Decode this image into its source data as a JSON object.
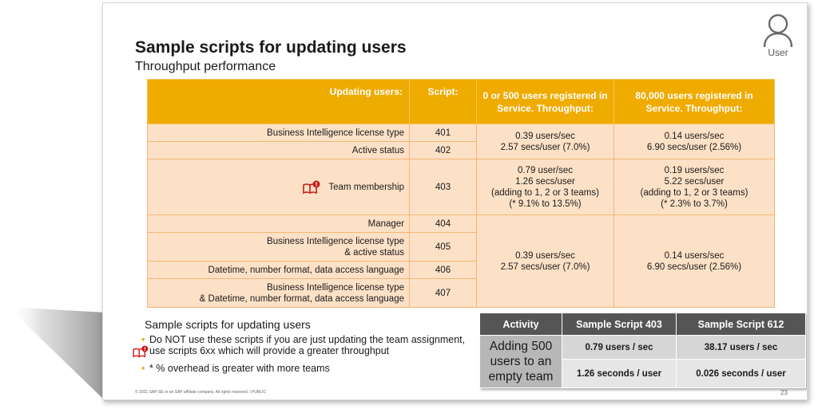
{
  "slide": {
    "title": "Sample scripts for updating users",
    "subtitle": "Throughput performance",
    "user_label": "User",
    "footer": "© 2021 SAP SE or an SAP affiliate company. All rights reserved.  ǀ  PUBLIC",
    "page_number": "23"
  },
  "main_table": {
    "headers": {
      "updating": "Updating users:",
      "script": "Script:",
      "col_a": "0 or 500 users registered in Service. Throughput:",
      "col_b": "80,000 users registered in Service. Throughput:"
    },
    "rows": [
      {
        "label": "Business Intelligence license type",
        "script": "401"
      },
      {
        "label": "Active status",
        "script": "402"
      },
      {
        "label": "Team membership",
        "script": "403"
      },
      {
        "label": "Manager",
        "script": "404"
      },
      {
        "label": "Business Intelligence license type\n& active status",
        "script": "405"
      },
      {
        "label": "Datetime, number format, data access language",
        "script": "406"
      },
      {
        "label": "Business Intelligence license type\n& Datetime, number format, data access language",
        "script": "407"
      }
    ],
    "group1": {
      "a": "0.39 users/sec\n2.57 secs/user (7.0%)",
      "b": "0.14 users/sec\n6.90 secs/user (2.56%)"
    },
    "group2": {
      "a": "0.79 user/sec\n1.26 secs/user\n(adding to 1, 2 or 3 teams)\n(* 9.1% to 13.5%)",
      "b": "0.19 users/sec\n5.22 secs/user\n(adding to 1, 2 or 3 teams)\n(* 2.3% to 3.7%)"
    },
    "group3": {
      "a": "0.39 users/sec\n2.57 secs/user (7.0%)",
      "b": "0.14 users/sec\n6.90 secs/user (2.56%)"
    }
  },
  "notes": {
    "heading": "Sample scripts for updating users",
    "bullet1": "Do NOT use these scripts if you are just updating the team assignment, use scripts 6xx which will provide a greater throughput",
    "bullet2": "* % overhead is greater with more teams"
  },
  "activity_table": {
    "headers": [
      "Activity",
      "Sample Script 403",
      "Sample Script 612"
    ],
    "activity": "Adding 500 users to an empty team",
    "rows": [
      [
        "0.79 users / sec",
        "38.17 users / sec"
      ],
      [
        "1.26 seconds / user",
        "0.026 seconds / user"
      ]
    ]
  },
  "colors": {
    "header_orange": "#f0ab00",
    "cell_peach": "#fde1c7",
    "warning_red": "#cc1919",
    "activity_header": "#555555"
  },
  "icons": [
    "user-icon",
    "book-warning-icon",
    "bullet-dot"
  ]
}
